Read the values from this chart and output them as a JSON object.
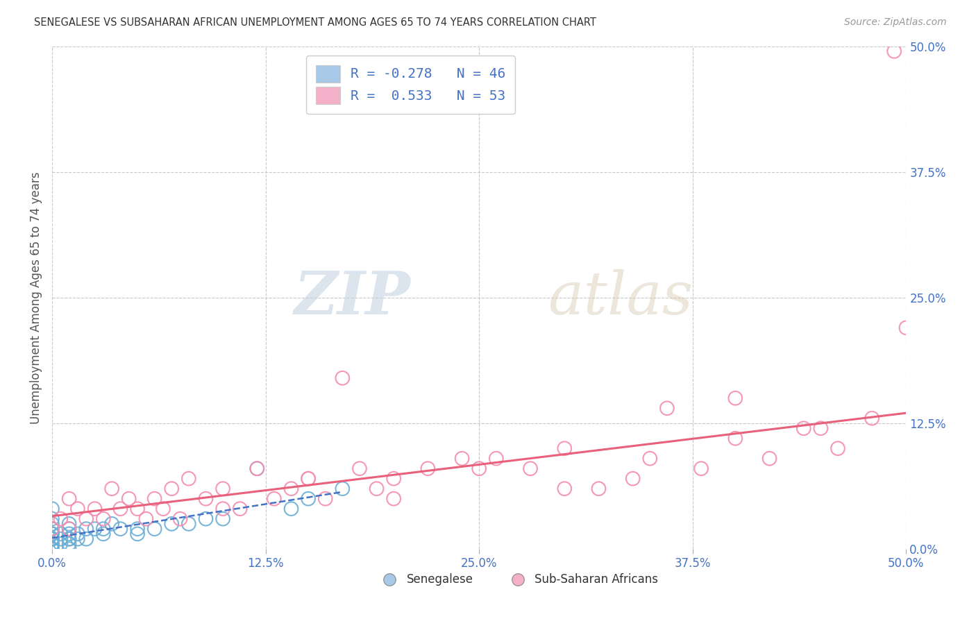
{
  "title": "SENEGALESE VS SUBSAHARAN AFRICAN UNEMPLOYMENT AMONG AGES 65 TO 74 YEARS CORRELATION CHART",
  "source": "Source: ZipAtlas.com",
  "ylabel": "Unemployment Among Ages 65 to 74 years",
  "xlim": [
    0.0,
    0.5
  ],
  "ylim": [
    0.0,
    0.5
  ],
  "xticks": [
    0.0,
    0.125,
    0.25,
    0.375,
    0.5
  ],
  "xticklabels": [
    "0.0%",
    "12.5%",
    "25.0%",
    "37.5%",
    "50.0%"
  ],
  "ytick_positions": [
    0.0,
    0.125,
    0.25,
    0.375,
    0.5
  ],
  "yticklabels_right": [
    "0.0%",
    "12.5%",
    "25.0%",
    "37.5%",
    "50.0%"
  ],
  "background_color": "#ffffff",
  "grid_color": "#c8c8c8",
  "senegalese_color": "none",
  "senegalese_edge_color": "#6baed6",
  "subsaharan_color": "none",
  "subsaharan_edge_color": "#f48cb0",
  "trend_senegalese_color": "#4472c4",
  "trend_subsaharan_color": "#e8607a",
  "legend_R1": "-0.278",
  "legend_N1": "46",
  "legend_R2": "0.533",
  "legend_N2": "53",
  "legend_fill_sen": "#a8c8e8",
  "legend_fill_sub": "#f4b0c8",
  "senegalese_x": [
    0.0,
    0.0,
    0.0,
    0.0,
    0.0,
    0.0,
    0.0,
    0.0,
    0.0,
    0.0,
    0.0,
    0.0,
    0.0,
    0.0,
    0.0,
    0.0,
    0.005,
    0.005,
    0.005,
    0.01,
    0.01,
    0.01,
    0.01,
    0.01,
    0.01,
    0.01,
    0.015,
    0.015,
    0.02,
    0.02,
    0.025,
    0.03,
    0.03,
    0.035,
    0.04,
    0.05,
    0.05,
    0.06,
    0.07,
    0.08,
    0.09,
    0.1,
    0.12,
    0.14,
    0.15,
    0.17
  ],
  "senegalese_y": [
    0.0,
    0.0,
    0.0,
    0.005,
    0.005,
    0.01,
    0.01,
    0.01,
    0.01,
    0.015,
    0.015,
    0.02,
    0.02,
    0.025,
    0.03,
    0.04,
    0.005,
    0.01,
    0.015,
    0.0,
    0.005,
    0.01,
    0.01,
    0.015,
    0.02,
    0.025,
    0.01,
    0.015,
    0.01,
    0.02,
    0.02,
    0.015,
    0.02,
    0.025,
    0.02,
    0.015,
    0.02,
    0.02,
    0.025,
    0.025,
    0.03,
    0.03,
    0.08,
    0.04,
    0.05,
    0.06
  ],
  "subsaharan_x": [
    0.0,
    0.005,
    0.01,
    0.01,
    0.015,
    0.02,
    0.025,
    0.03,
    0.035,
    0.04,
    0.045,
    0.05,
    0.055,
    0.06,
    0.065,
    0.07,
    0.075,
    0.08,
    0.09,
    0.1,
    0.11,
    0.12,
    0.13,
    0.14,
    0.15,
    0.16,
    0.17,
    0.18,
    0.19,
    0.2,
    0.22,
    0.24,
    0.26,
    0.28,
    0.3,
    0.32,
    0.34,
    0.36,
    0.38,
    0.4,
    0.42,
    0.44,
    0.46,
    0.48,
    0.5,
    0.1,
    0.15,
    0.2,
    0.25,
    0.3,
    0.35,
    0.4,
    0.45
  ],
  "subsaharan_y": [
    0.02,
    0.03,
    0.02,
    0.05,
    0.04,
    0.03,
    0.04,
    0.03,
    0.06,
    0.04,
    0.05,
    0.04,
    0.03,
    0.05,
    0.04,
    0.06,
    0.03,
    0.07,
    0.05,
    0.06,
    0.04,
    0.08,
    0.05,
    0.06,
    0.07,
    0.05,
    0.17,
    0.08,
    0.06,
    0.07,
    0.08,
    0.09,
    0.09,
    0.08,
    0.1,
    0.06,
    0.07,
    0.14,
    0.08,
    0.11,
    0.09,
    0.12,
    0.1,
    0.13,
    0.22,
    0.04,
    0.07,
    0.05,
    0.08,
    0.06,
    0.09,
    0.15,
    0.12
  ]
}
